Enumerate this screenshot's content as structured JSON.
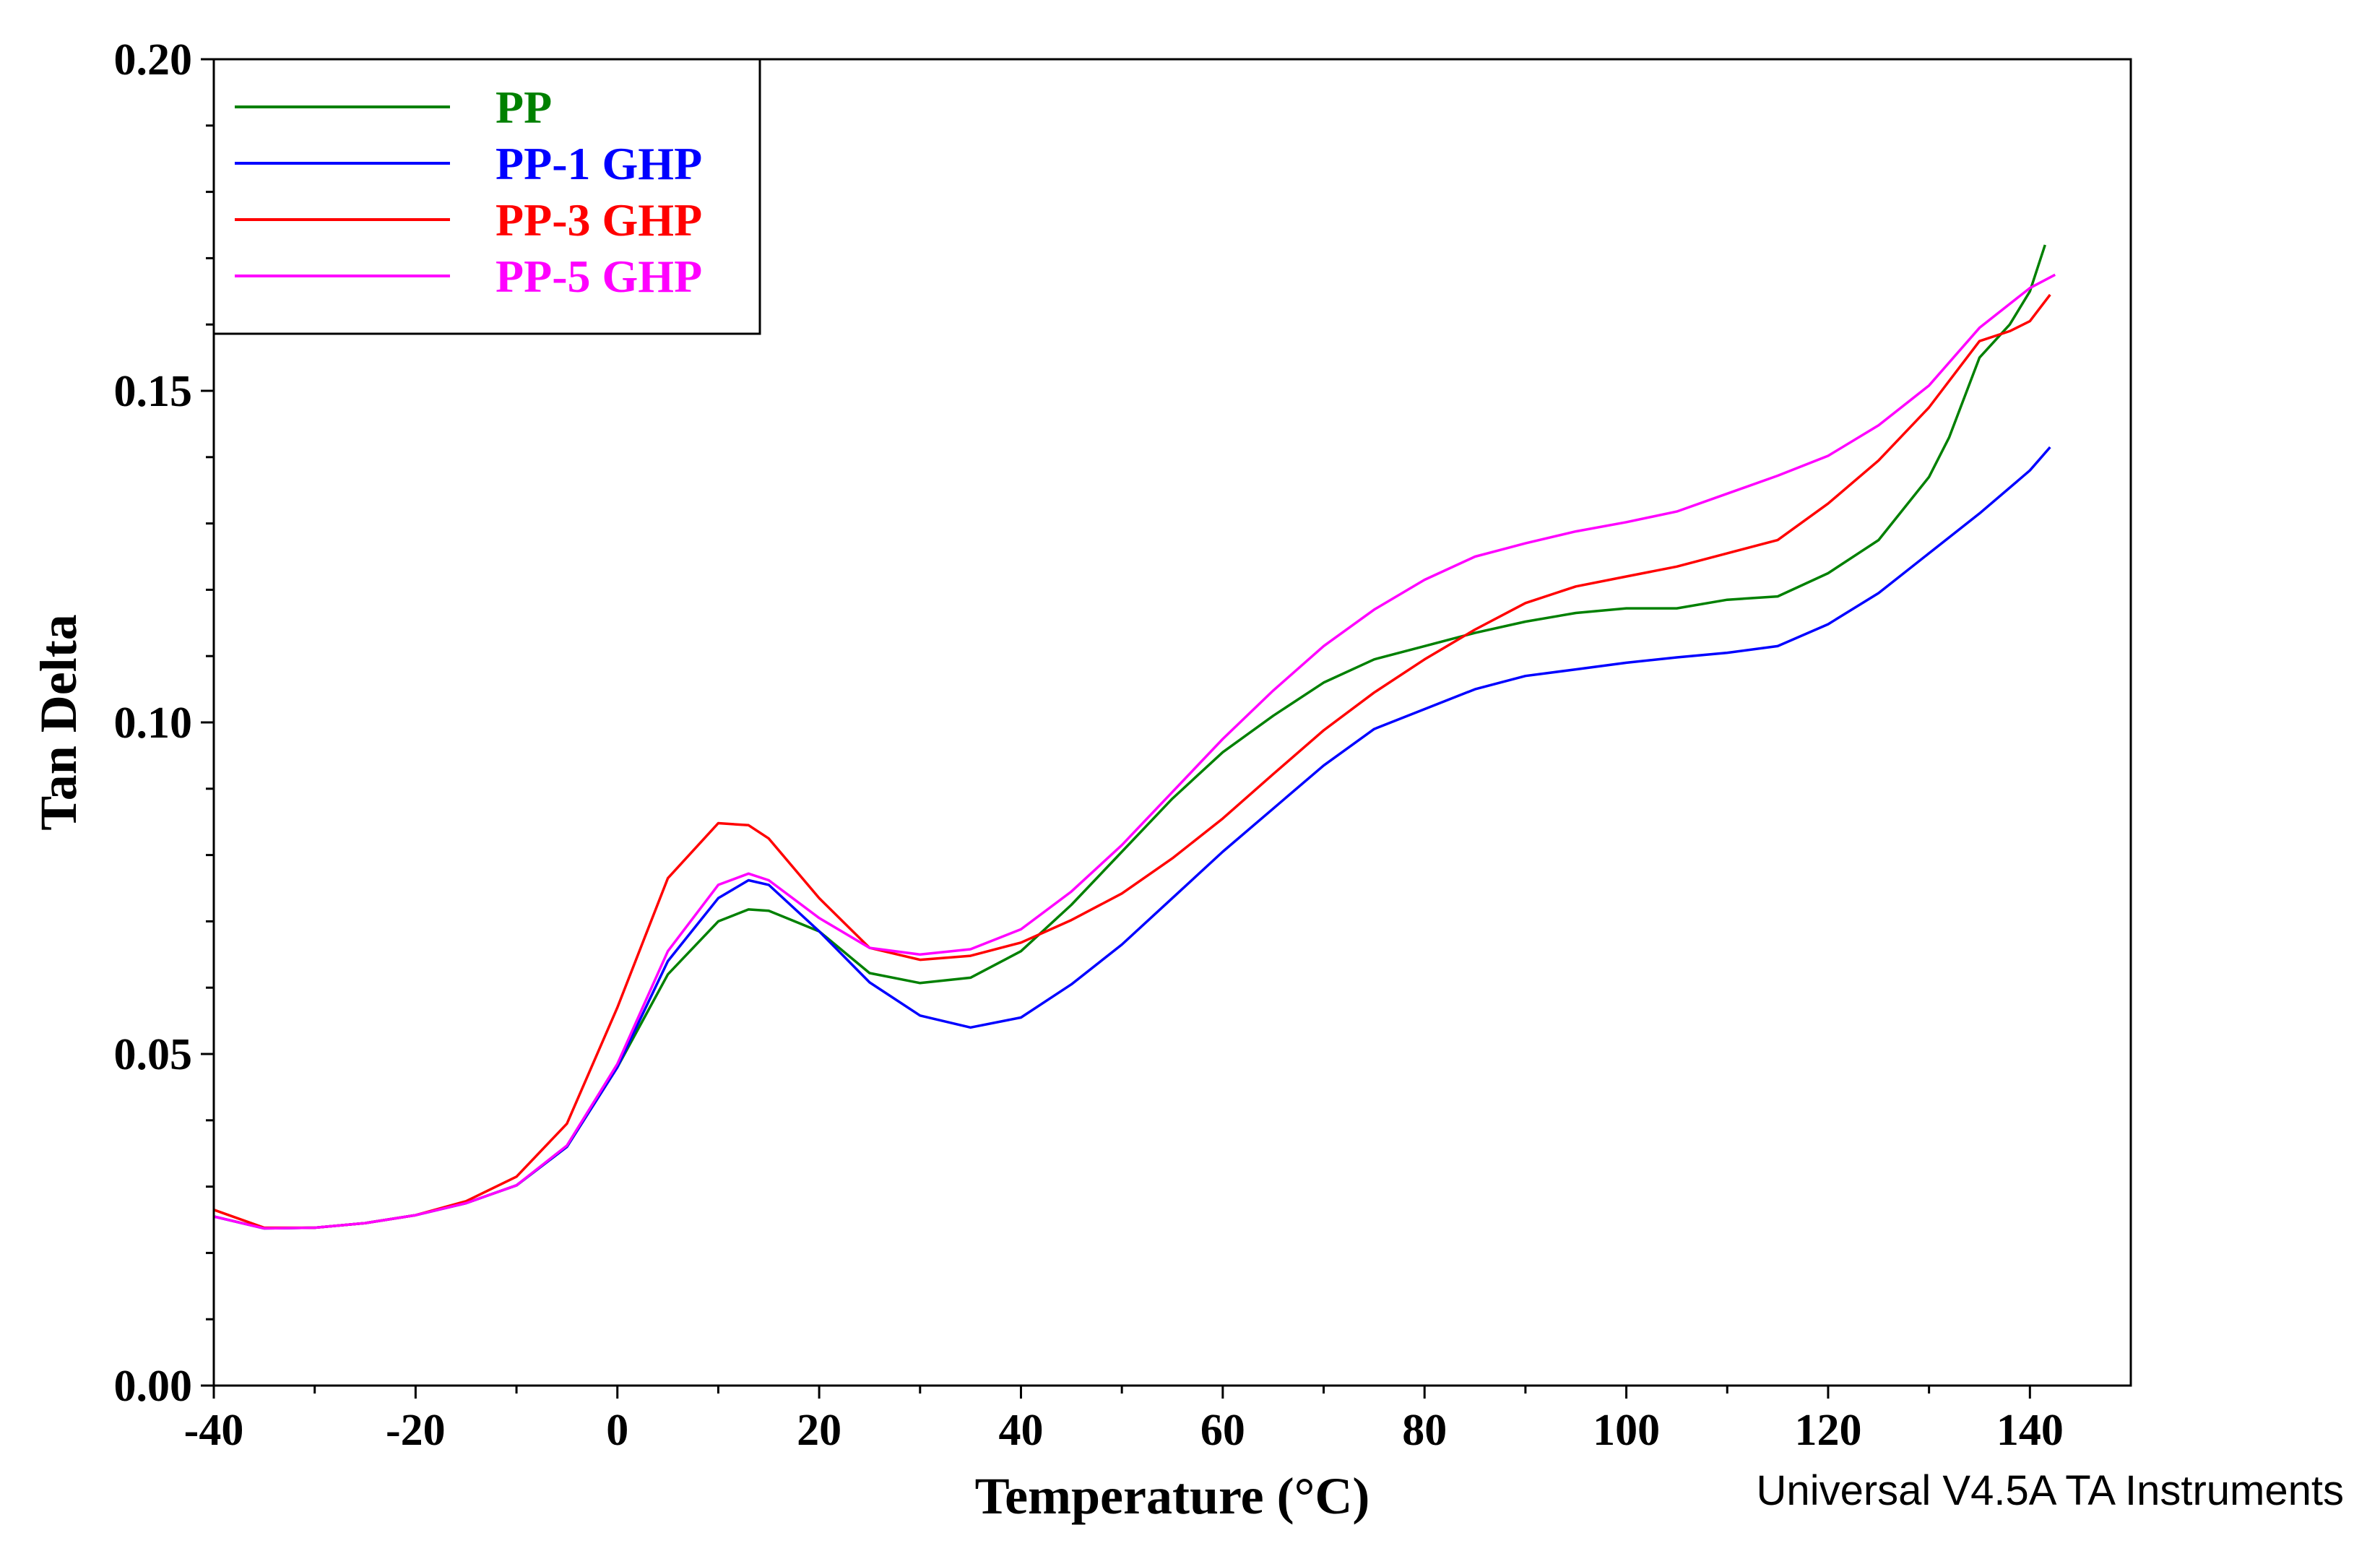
{
  "chart_data": {
    "type": "line",
    "title": "",
    "xlabel": "Temperature (°C)",
    "ylabel": "Tan Delta",
    "xlim": [
      -40,
      150
    ],
    "ylim": [
      0.0,
      0.2
    ],
    "xticks": [
      -40,
      -20,
      0,
      20,
      40,
      60,
      80,
      100,
      120,
      140
    ],
    "yticks": [
      0.0,
      0.05,
      0.1,
      0.15,
      0.2
    ],
    "ytick_labels": [
      "0.00",
      "0.05",
      "0.10",
      "0.15",
      "0.20"
    ],
    "grid": false,
    "legend_position": "top-left",
    "series": [
      {
        "name": "PP",
        "color": "#008000",
        "x": [
          -40,
          -35,
          -30,
          -25,
          -20,
          -15,
          -10,
          -5,
          0,
          5,
          10,
          13,
          15,
          20,
          25,
          30,
          35,
          40,
          45,
          50,
          55,
          60,
          65,
          70,
          75,
          80,
          85,
          90,
          95,
          100,
          105,
          110,
          115,
          120,
          125,
          130,
          132,
          135,
          138,
          140,
          141.5
        ],
        "y": [
          0.0255,
          0.0237,
          0.0238,
          0.0245,
          0.0257,
          0.0275,
          0.0302,
          0.036,
          0.048,
          0.062,
          0.07,
          0.0718,
          0.0716,
          0.0685,
          0.0622,
          0.0607,
          0.0615,
          0.0655,
          0.0725,
          0.0805,
          0.0885,
          0.0955,
          0.101,
          0.106,
          0.1095,
          0.1115,
          0.1135,
          0.1152,
          0.1165,
          0.1172,
          0.1172,
          0.1185,
          0.119,
          0.1225,
          0.1275,
          0.137,
          0.143,
          0.155,
          0.16,
          0.165,
          0.172
        ]
      },
      {
        "name": "PP-1 GHP",
        "color": "#0000ff",
        "x": [
          -40,
          -35,
          -30,
          -25,
          -20,
          -15,
          -10,
          -5,
          0,
          5,
          10,
          13,
          15,
          20,
          25,
          30,
          35,
          40,
          45,
          50,
          55,
          60,
          65,
          70,
          75,
          80,
          85,
          90,
          95,
          100,
          105,
          110,
          115,
          120,
          125,
          130,
          135,
          140,
          142
        ],
        "y": [
          0.0255,
          0.0237,
          0.0238,
          0.0245,
          0.0257,
          0.0275,
          0.0302,
          0.036,
          0.048,
          0.064,
          0.0735,
          0.0762,
          0.0755,
          0.0685,
          0.0608,
          0.0558,
          0.054,
          0.0555,
          0.0605,
          0.0665,
          0.0735,
          0.0805,
          0.087,
          0.0935,
          0.099,
          0.102,
          0.105,
          0.107,
          0.108,
          0.109,
          0.1098,
          0.1105,
          0.1115,
          0.1148,
          0.1195,
          0.1255,
          0.1315,
          0.138,
          0.1415
        ]
      },
      {
        "name": "PP-3 GHP",
        "color": "#ff0000",
        "x": [
          -40,
          -35,
          -30,
          -25,
          -20,
          -15,
          -10,
          -5,
          0,
          5,
          10,
          13,
          15,
          20,
          25,
          30,
          35,
          40,
          45,
          50,
          55,
          60,
          65,
          70,
          75,
          80,
          85,
          90,
          95,
          100,
          105,
          110,
          115,
          120,
          125,
          130,
          135,
          138,
          140,
          142
        ],
        "y": [
          0.0265,
          0.0238,
          0.0238,
          0.0245,
          0.0257,
          0.0278,
          0.0315,
          0.0395,
          0.057,
          0.0765,
          0.0848,
          0.0845,
          0.0825,
          0.0735,
          0.066,
          0.0642,
          0.0648,
          0.0668,
          0.0702,
          0.0742,
          0.0795,
          0.0855,
          0.0922,
          0.0988,
          0.1045,
          0.1095,
          0.114,
          0.118,
          0.1205,
          0.122,
          0.1235,
          0.1255,
          0.1275,
          0.133,
          0.1395,
          0.1475,
          0.1575,
          0.159,
          0.1605,
          0.1645
        ]
      },
      {
        "name": "PP-5 GHP",
        "color": "#ff00ff",
        "x": [
          -40,
          -35,
          -30,
          -25,
          -20,
          -15,
          -10,
          -5,
          0,
          5,
          10,
          13,
          15,
          20,
          25,
          30,
          35,
          40,
          45,
          50,
          55,
          60,
          65,
          70,
          75,
          80,
          85,
          90,
          95,
          100,
          105,
          110,
          115,
          120,
          125,
          130,
          135,
          140,
          142.5
        ],
        "y": [
          0.0255,
          0.0237,
          0.0238,
          0.0245,
          0.0257,
          0.0275,
          0.0302,
          0.0362,
          0.0485,
          0.0655,
          0.0755,
          0.0772,
          0.0762,
          0.0705,
          0.066,
          0.065,
          0.0658,
          0.0688,
          0.0745,
          0.0815,
          0.0895,
          0.0975,
          0.1048,
          0.1115,
          0.117,
          0.1215,
          0.125,
          0.127,
          0.1288,
          0.1302,
          0.1318,
          0.1345,
          0.1372,
          0.1402,
          0.1448,
          0.1508,
          0.1595,
          0.1655,
          0.1675
        ]
      }
    ],
    "annotation": "Universal V4.5A TA Instruments"
  }
}
